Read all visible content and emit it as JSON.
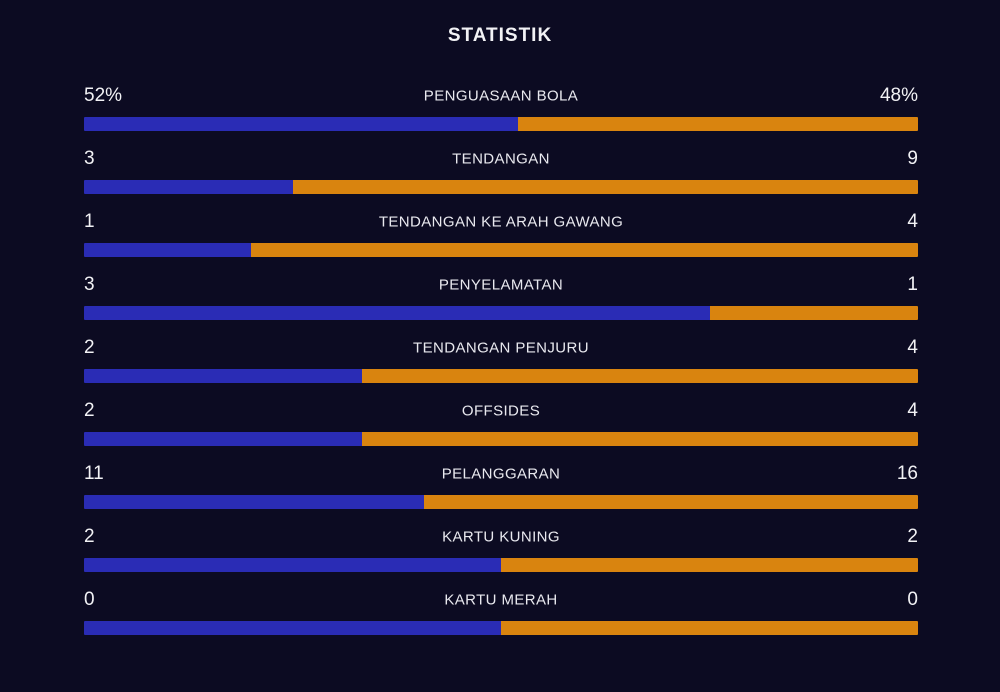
{
  "title": "STATISTIK",
  "colors": {
    "background": "#0c0b22",
    "home": "#2a2cb5",
    "away": "#d9840f",
    "text": "#f2f2f5"
  },
  "rows": [
    {
      "label": "PENGUASAAN BOLA",
      "home": "52%",
      "away": "48%",
      "home_pct": 52
    },
    {
      "label": "TENDANGAN",
      "home": "3",
      "away": "9",
      "home_pct": 25
    },
    {
      "label": "TENDANGAN KE ARAH GAWANG",
      "home": "1",
      "away": "4",
      "home_pct": 20
    },
    {
      "label": "PENYELAMATAN",
      "home": "3",
      "away": "1",
      "home_pct": 75
    },
    {
      "label": "TENDANGAN PENJURU",
      "home": "2",
      "away": "4",
      "home_pct": 33.33
    },
    {
      "label": "OFFSIDES",
      "home": "2",
      "away": "4",
      "home_pct": 33.33
    },
    {
      "label": "PELANGGARAN",
      "home": "11",
      "away": "16",
      "home_pct": 40.74
    },
    {
      "label": "KARTU KUNING",
      "home": "2",
      "away": "2",
      "home_pct": 50
    },
    {
      "label": "KARTU MERAH",
      "home": "0",
      "away": "0",
      "home_pct": 50
    }
  ],
  "chart_data": {
    "type": "bar",
    "variant": "horizontal-stacked-comparison",
    "title": "STATISTIK",
    "categories": [
      "PENGUASAAN BOLA",
      "TENDANGAN",
      "TENDANGAN KE ARAH GAWANG",
      "PENYELAMATAN",
      "TENDANGAN PENJURU",
      "OFFSIDES",
      "PELANGGARAN",
      "KARTU KUNING",
      "KARTU MERAH"
    ],
    "series": [
      {
        "name": "home",
        "color": "#2a2cb5",
        "values": [
          52,
          3,
          1,
          3,
          2,
          2,
          11,
          2,
          0
        ]
      },
      {
        "name": "away",
        "color": "#d9840f",
        "values": [
          48,
          9,
          4,
          1,
          4,
          4,
          16,
          2,
          0
        ]
      }
    ],
    "value_format_note": "first category shown as percent (52% / 48%), bars filled left-to-right proportional to home share; equal split when both values are 0",
    "legend_position": "none",
    "grid": false
  }
}
